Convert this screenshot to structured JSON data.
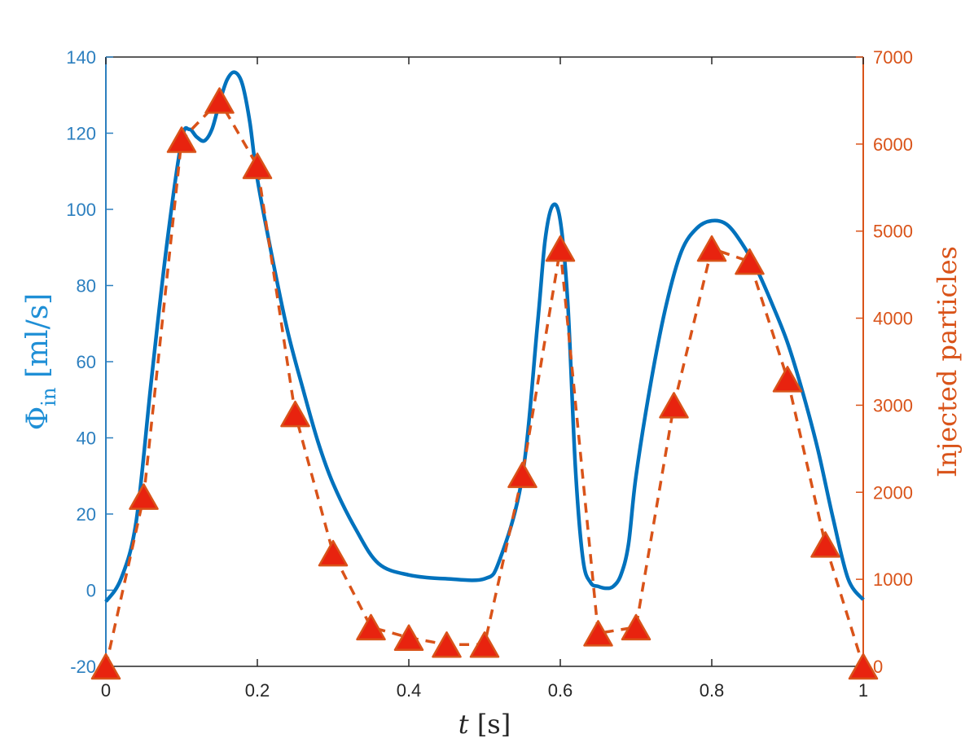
{
  "chart_data": {
    "type": "line",
    "xlabel": "t [s]",
    "ylabel_left": "Φin [ml/s]",
    "ylabel_right": "Injected particles",
    "xlim": [
      0,
      1
    ],
    "ylim_left": [
      -20,
      140
    ],
    "ylim_right": [
      0,
      7000
    ],
    "x_ticks": [
      "0",
      "0.2",
      "0.4",
      "0.6",
      "0.8",
      "1"
    ],
    "y_left_ticks": [
      "-20",
      "0",
      "20",
      "40",
      "60",
      "80",
      "100",
      "120",
      "140"
    ],
    "y_right_ticks": [
      "0",
      "1000",
      "2000",
      "3000",
      "4000",
      "5000",
      "6000",
      "7000"
    ],
    "grid": false,
    "colors": {
      "flow": "#0072bd",
      "particles": "#d95319",
      "marker_fill": "#e8230f",
      "axis_left": "#2c7fbf",
      "axis_right": "#d95319"
    },
    "series": [
      {
        "axis": "left",
        "style": "solid",
        "x": [
          0,
          0.02,
          0.04,
          0.06,
          0.08,
          0.1,
          0.11,
          0.12,
          0.13,
          0.14,
          0.15,
          0.16,
          0.17,
          0.18,
          0.19,
          0.2,
          0.22,
          0.24,
          0.26,
          0.28,
          0.3,
          0.33,
          0.36,
          0.4,
          0.45,
          0.5,
          0.52,
          0.55,
          0.57,
          0.58,
          0.59,
          0.6,
          0.61,
          0.62,
          0.63,
          0.64,
          0.65,
          0.66,
          0.67,
          0.68,
          0.69,
          0.7,
          0.72,
          0.74,
          0.76,
          0.78,
          0.8,
          0.82,
          0.84,
          0.86,
          0.88,
          0.9,
          0.92,
          0.94,
          0.96,
          0.98,
          1.0
        ],
        "y": [
          -3,
          3,
          18,
          55,
          90,
          118,
          121,
          119,
          118,
          121,
          128,
          134,
          136,
          133,
          123,
          108,
          87,
          68,
          53,
          39,
          28,
          16,
          7,
          4,
          3,
          3,
          8,
          30,
          70,
          92,
          101,
          97,
          75,
          32,
          8,
          2,
          1,
          0.5,
          1,
          4,
          12,
          30,
          55,
          75,
          89,
          95,
          97,
          96,
          91,
          84,
          75,
          65,
          52,
          37,
          19,
          3,
          -2.5
        ]
      },
      {
        "axis": "right",
        "style": "dashed",
        "marker": "triangle",
        "x": [
          0,
          0.05,
          0.1,
          0.15,
          0.2,
          0.25,
          0.3,
          0.35,
          0.4,
          0.45,
          0.5,
          0.55,
          0.6,
          0.65,
          0.7,
          0.75,
          0.8,
          0.85,
          0.9,
          0.95,
          1.0
        ],
        "y": [
          0,
          1950,
          6050,
          6500,
          5750,
          2900,
          1300,
          450,
          330,
          250,
          250,
          2200,
          4800,
          380,
          450,
          3000,
          4800,
          4650,
          3300,
          1400,
          0
        ]
      }
    ]
  }
}
